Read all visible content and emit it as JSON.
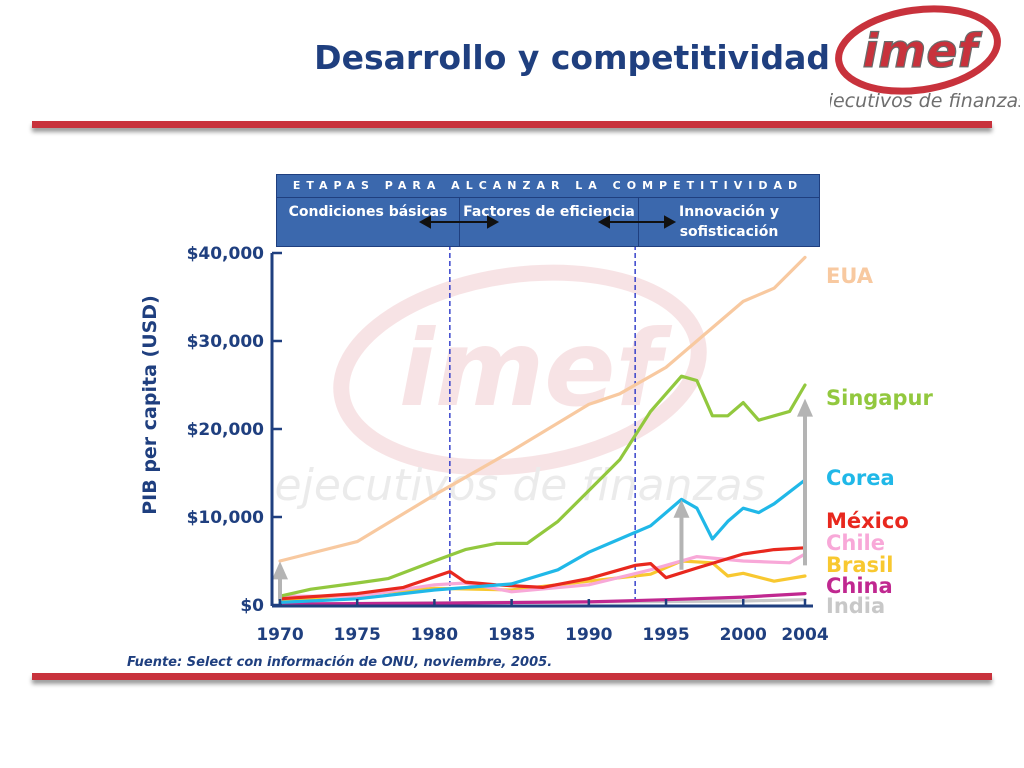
{
  "slide": {
    "title": "Desarrollo y competitividad",
    "logo_text": "imef",
    "logo_subtitle": "ejecutivos de finanzas",
    "source": "Fuente: Select con información de ONU, noviembre, 2005."
  },
  "banner": {
    "heading": "ETAPAS PARA ALCANZAR LA COMPETITIVIDAD",
    "stages": [
      "Condiciones básicas",
      "Factores de eficiencia",
      "Innovación y sofisticación"
    ]
  },
  "colors": {
    "title": "#1f3f7f",
    "rule": "#c8323c",
    "banner": "#3b68ad",
    "axis": "#1f3f7f"
  },
  "chart_data": {
    "type": "line",
    "ylabel": "PIB per capita (USD)",
    "xlim": [
      1970,
      2004
    ],
    "ylim": [
      0,
      40000
    ],
    "x_ticks": [
      1970,
      1975,
      1980,
      1985,
      1990,
      1995,
      2000,
      2004
    ],
    "y_ticks": [
      0,
      10000,
      20000,
      30000,
      40000
    ],
    "y_tick_labels": [
      "$0",
      "$10,000",
      "$20,000",
      "$30,000",
      "$40,000"
    ],
    "stage_boundaries": [
      1981,
      1993
    ],
    "arrows": [
      {
        "x": 1970,
        "from": 500,
        "to": 4500
      },
      {
        "x": 1996,
        "from": 4000,
        "to": 11500
      },
      {
        "x": 2004,
        "from": 4500,
        "to": 23000
      }
    ],
    "series": [
      {
        "name": "EUA",
        "color": "#f8c9a0",
        "x": [
          1970,
          1975,
          1980,
          1981,
          1985,
          1990,
          1992,
          1995,
          2000,
          2002,
          2004
        ],
        "y": [
          5000,
          7200,
          12500,
          13500,
          17500,
          22800,
          24000,
          27000,
          34500,
          36000,
          39500
        ]
      },
      {
        "name": "Singapur",
        "color": "#92c83e",
        "x": [
          1970,
          1972,
          1975,
          1977,
          1980,
          1982,
          1984,
          1986,
          1988,
          1990,
          1992,
          1994,
          1996,
          1997,
          1998,
          1999,
          2000,
          2001,
          2002,
          2003,
          2004
        ],
        "y": [
          1000,
          1800,
          2500,
          3000,
          5000,
          6300,
          7000,
          7000,
          9500,
          13000,
          16500,
          22000,
          26000,
          25500,
          21500,
          21500,
          23000,
          21000,
          21500,
          22000,
          25000
        ]
      },
      {
        "name": "Corea",
        "color": "#20b8e8",
        "x": [
          1970,
          1975,
          1980,
          1985,
          1988,
          1990,
          1992,
          1994,
          1996,
          1997,
          1998,
          1999,
          2000,
          2001,
          2002,
          2004
        ],
        "y": [
          300,
          700,
          1700,
          2400,
          4000,
          6000,
          7500,
          9000,
          12000,
          11000,
          7500,
          9500,
          11000,
          10500,
          11500,
          14200
        ]
      },
      {
        "name": "México",
        "color": "#e8281e",
        "x": [
          1970,
          1975,
          1978,
          1981,
          1982,
          1984,
          1987,
          1990,
          1993,
          1994,
          1995,
          1997,
          2000,
          2002,
          2004
        ],
        "y": [
          700,
          1300,
          2000,
          3800,
          2600,
          2300,
          2000,
          3000,
          4500,
          4700,
          3100,
          4200,
          5800,
          6300,
          6500
        ]
      },
      {
        "name": "Chile",
        "color": "#f8a8d8",
        "x": [
          1970,
          1975,
          1980,
          1982,
          1985,
          1990,
          1994,
          1997,
          2000,
          2003,
          2004
        ],
        "y": [
          1000,
          1000,
          2300,
          2500,
          1500,
          2300,
          4000,
          5500,
          5000,
          4800,
          5800
        ]
      },
      {
        "name": "Brasil",
        "color": "#f8c830",
        "x": [
          1970,
          1975,
          1980,
          1985,
          1990,
          1994,
          1996,
          1998,
          1999,
          2000,
          2002,
          2004
        ],
        "y": [
          500,
          1200,
          1900,
          1700,
          2700,
          3500,
          5000,
          4800,
          3300,
          3600,
          2700,
          3300
        ]
      },
      {
        "name": "China",
        "color": "#c02890",
        "x": [
          1970,
          1980,
          1990,
          1995,
          2000,
          2004
        ],
        "y": [
          100,
          200,
          350,
          600,
          900,
          1300
        ]
      },
      {
        "name": "India",
        "color": "#c8c8c8",
        "x": [
          1970,
          1980,
          1990,
          2000,
          2004
        ],
        "y": [
          100,
          250,
          350,
          450,
          600
        ]
      }
    ]
  }
}
